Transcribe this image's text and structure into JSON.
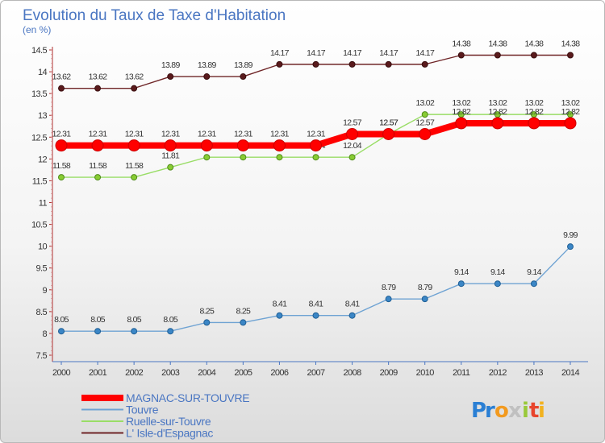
{
  "chart_data": {
    "type": "line",
    "title": "Evolution du Taux de Taxe d'Habitation",
    "ylabel": "(en %)",
    "ylim": [
      7.5,
      14.5
    ],
    "yticks": [
      "7.5",
      "8",
      "8.5",
      "9",
      "9.5",
      "10",
      "10.5",
      "11",
      "11.5",
      "12",
      "12.5",
      "13",
      "13.5",
      "14",
      "14.5"
    ],
    "x": [
      "2000",
      "2001",
      "2002",
      "2003",
      "2004",
      "2005",
      "2006",
      "2007",
      "2008",
      "2009",
      "2010",
      "2011",
      "2012",
      "2013",
      "2014"
    ],
    "series": [
      {
        "name": "L' Isle-d'Espagnac",
        "color": "#6e2426",
        "values": [
          13.62,
          13.62,
          13.62,
          13.89,
          13.89,
          13.89,
          14.17,
          14.17,
          14.17,
          14.17,
          14.17,
          14.38,
          14.38,
          14.38,
          14.38
        ],
        "labels": [
          "13.62",
          "13.62",
          "13.62",
          "13.89",
          "13.89",
          "13.89",
          "14.17",
          "14.17",
          "14.17",
          "14.17",
          "14.17",
          "14.38",
          "14.38",
          "14.38",
          "14.38"
        ]
      },
      {
        "name": "Ruelle-sur-Touvre",
        "color": "#99dd66",
        "values": [
          11.58,
          11.58,
          11.58,
          11.81,
          12.04,
          12.04,
          12.04,
          12.04,
          12.04,
          12.57,
          13.02,
          13.02,
          13.02,
          13.02,
          13.02
        ],
        "labels": [
          "11.58",
          "11.58",
          "11.58",
          "11.81",
          "12.04",
          "12.04",
          "12.04",
          "12.04",
          "12.04",
          "12.57",
          "13.02",
          "13.02",
          "13.02",
          "13.02",
          "13.02"
        ]
      },
      {
        "name": "MAGNAC-SUR-TOUVRE",
        "color": "#ff0000",
        "values": [
          12.31,
          12.31,
          12.31,
          12.31,
          12.31,
          12.31,
          12.31,
          12.31,
          12.57,
          12.57,
          12.57,
          12.82,
          12.82,
          12.82,
          12.82
        ],
        "labels": [
          "12.31",
          "12.31",
          "12.31",
          "12.31",
          "12.31",
          "12.31",
          "12.31",
          "12.31",
          "12.57",
          "12.57",
          "12.57",
          "12.82",
          "12.82",
          "12.82",
          "12.82"
        ]
      },
      {
        "name": "Touvre",
        "color": "#6fa3d3",
        "values": [
          8.05,
          8.05,
          8.05,
          8.05,
          8.25,
          8.25,
          8.41,
          8.41,
          8.41,
          8.79,
          8.79,
          9.14,
          9.14,
          9.14,
          9.99
        ],
        "labels": [
          "8.05",
          "8.05",
          "8.05",
          "8.05",
          "8.25",
          "8.25",
          "8.41",
          "8.41",
          "8.41",
          "8.79",
          "8.79",
          "9.14",
          "9.14",
          "9.14",
          "9.99"
        ]
      }
    ],
    "legend": [
      {
        "name": "MAGNAC-SUR-TOUVRE",
        "color": "#ff0000"
      },
      {
        "name": "Touvre",
        "color": "#6fa3d3"
      },
      {
        "name": "Ruelle-sur-Touvre",
        "color": "#99dd66"
      },
      {
        "name": "L' Isle-d'Espagnac",
        "color": "#6e2426"
      }
    ],
    "legend_position": "bottom-left",
    "grid": false
  },
  "logo": {
    "letters": [
      "P",
      "r",
      "o",
      "x",
      "i",
      "t",
      "i"
    ],
    "colors": [
      "#2a7fd4",
      "#2a7fd4",
      "#f29a1f",
      "#c0c0c0",
      "#99c93a",
      "#e8442c",
      "#f2b21f"
    ]
  }
}
